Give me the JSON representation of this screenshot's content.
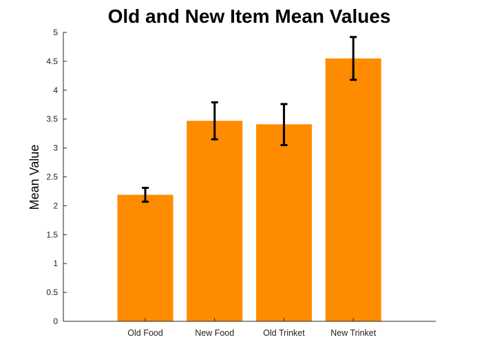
{
  "chart_data": {
    "type": "bar",
    "title": "Old and New Item Mean Values",
    "xlabel": "",
    "ylabel": "Mean Value",
    "categories": [
      "Old Food",
      "New Food",
      "Old Trinket",
      "New Trinket"
    ],
    "values": [
      2.19,
      3.47,
      3.41,
      4.55
    ],
    "error_low": [
      2.07,
      3.15,
      3.05,
      4.18
    ],
    "error_high": [
      2.31,
      3.79,
      3.76,
      4.92
    ],
    "ylim": [
      0,
      5
    ],
    "yticks": [
      0,
      0.5,
      1,
      1.5,
      2,
      2.5,
      3,
      3.5,
      4,
      4.5,
      5
    ],
    "ytick_labels": [
      "0",
      "0.5",
      "1",
      "1.5",
      "2",
      "2.5",
      "3",
      "3.5",
      "4",
      "4.5",
      "5"
    ],
    "grid": false,
    "colors": {
      "bar": "#ff8b00",
      "error": "#000000",
      "axis": "#262626"
    }
  }
}
